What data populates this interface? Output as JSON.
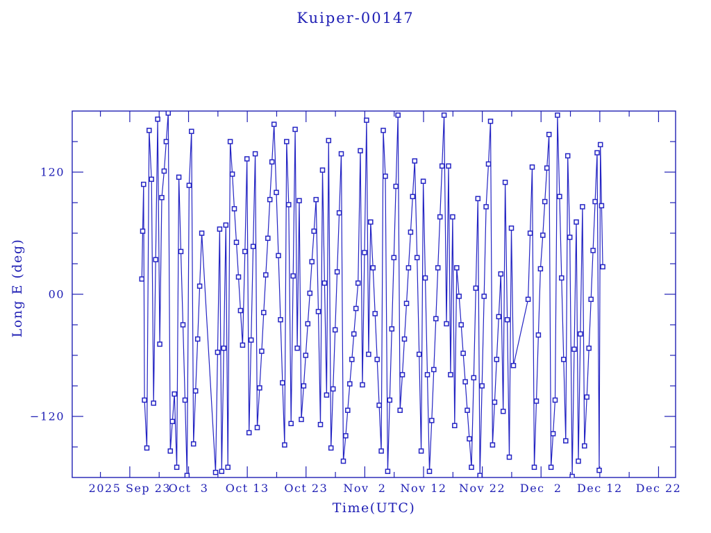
{
  "window": {
    "background": "#ffffff"
  },
  "colors": {
    "text": "#1e1eb4",
    "frame": "#1e1eb4",
    "series_line": "#2323c3",
    "marker_stroke": "#2323c3",
    "marker_fill": "#ffffff"
  },
  "chart_data": {
    "type": "line",
    "title": "Kuiper-00147",
    "xlabel": "Time(UTC)",
    "ylabel": "Long E (deg)",
    "x_unit": "days since 2025 Sep 23 00:00 UTC",
    "xlim": [
      -9.8,
      92.9
    ],
    "ylim": [
      -180,
      180
    ],
    "grid": false,
    "legend": "none",
    "marker": "open-square",
    "marker_size_px": 6,
    "x_major_ticks": [
      {
        "d": 0,
        "label": "2025 Sep 23"
      },
      {
        "d": 10,
        "label": "Oct  3"
      },
      {
        "d": 20,
        "label": "Oct 13"
      },
      {
        "d": 30,
        "label": "Oct 23"
      },
      {
        "d": 40,
        "label": "Nov  2"
      },
      {
        "d": 50,
        "label": "Nov 12"
      },
      {
        "d": 60,
        "label": "Nov 22"
      },
      {
        "d": 70,
        "label": "Dec  2"
      },
      {
        "d": 80,
        "label": "Dec 12"
      },
      {
        "d": 90,
        "label": "Dec 22"
      }
    ],
    "x_minor_ticks_days": [
      -5,
      5,
      15,
      25,
      35,
      45,
      55,
      65,
      75,
      85
    ],
    "y_major_ticks": [
      {
        "v": 120,
        "label": "120"
      },
      {
        "v": 0,
        "label": "00"
      },
      {
        "v": -120,
        "label": "−120"
      }
    ],
    "y_minor_ticks_deg": [
      150,
      90,
      60,
      30,
      -30,
      -60,
      -90,
      -150
    ],
    "points": [
      [
        2.05,
        15
      ],
      [
        2.2,
        62
      ],
      [
        2.35,
        108
      ],
      [
        2.5,
        -104
      ],
      [
        2.9,
        -151
      ],
      [
        3.3,
        161
      ],
      [
        3.7,
        113
      ],
      [
        4.05,
        -107
      ],
      [
        4.4,
        34
      ],
      [
        4.75,
        172
      ],
      [
        5.1,
        -49
      ],
      [
        5.45,
        95
      ],
      [
        5.85,
        121
      ],
      [
        6.2,
        150
      ],
      [
        6.55,
        178
      ],
      [
        6.9,
        -154
      ],
      [
        7.25,
        -125
      ],
      [
        7.6,
        -98
      ],
      [
        8.0,
        -170
      ],
      [
        8.35,
        115
      ],
      [
        8.7,
        42
      ],
      [
        9.05,
        -30
      ],
      [
        9.4,
        -104
      ],
      [
        9.75,
        -178
      ],
      [
        10.1,
        107
      ],
      [
        10.5,
        160
      ],
      [
        10.85,
        -147
      ],
      [
        11.2,
        -95
      ],
      [
        11.55,
        -44
      ],
      [
        11.9,
        8
      ],
      [
        12.25,
        60
      ],
      [
        14.6,
        -175
      ],
      [
        14.95,
        -57
      ],
      [
        15.3,
        64
      ],
      [
        15.65,
        -174
      ],
      [
        16.0,
        -53
      ],
      [
        16.35,
        68
      ],
      [
        16.7,
        -170
      ],
      [
        17.1,
        150
      ],
      [
        17.45,
        118
      ],
      [
        17.8,
        84
      ],
      [
        18.15,
        51
      ],
      [
        18.5,
        17
      ],
      [
        18.85,
        -16
      ],
      [
        19.2,
        -50
      ],
      [
        19.6,
        42
      ],
      [
        19.95,
        133
      ],
      [
        20.3,
        -136
      ],
      [
        20.65,
        -45
      ],
      [
        21.0,
        47
      ],
      [
        21.35,
        138
      ],
      [
        21.7,
        -131
      ],
      [
        22.1,
        -92
      ],
      [
        22.45,
        -56
      ],
      [
        22.8,
        -18
      ],
      [
        23.15,
        19
      ],
      [
        23.5,
        55
      ],
      [
        23.85,
        93
      ],
      [
        24.2,
        130
      ],
      [
        24.55,
        167
      ],
      [
        24.95,
        100
      ],
      [
        25.3,
        38
      ],
      [
        25.65,
        -25
      ],
      [
        26.0,
        -87
      ],
      [
        26.35,
        -148
      ],
      [
        26.7,
        150
      ],
      [
        27.05,
        88
      ],
      [
        27.45,
        -127
      ],
      [
        27.8,
        18
      ],
      [
        28.15,
        162
      ],
      [
        28.5,
        -53
      ],
      [
        28.85,
        92
      ],
      [
        29.2,
        -123
      ],
      [
        29.6,
        -90
      ],
      [
        29.95,
        -60
      ],
      [
        30.3,
        -29
      ],
      [
        30.65,
        1
      ],
      [
        31.0,
        32
      ],
      [
        31.35,
        62
      ],
      [
        31.7,
        93
      ],
      [
        32.1,
        -17
      ],
      [
        32.45,
        -128
      ],
      [
        32.8,
        122
      ],
      [
        33.15,
        11
      ],
      [
        33.5,
        -99
      ],
      [
        33.85,
        151
      ],
      [
        34.25,
        -151
      ],
      [
        34.6,
        -93
      ],
      [
        34.95,
        -35
      ],
      [
        35.3,
        22
      ],
      [
        35.65,
        80
      ],
      [
        36.0,
        138
      ],
      [
        36.35,
        -164
      ],
      [
        36.75,
        -139
      ],
      [
        37.1,
        -114
      ],
      [
        37.45,
        -88
      ],
      [
        37.8,
        -64
      ],
      [
        38.15,
        -39
      ],
      [
        38.5,
        -14
      ],
      [
        38.85,
        11
      ],
      [
        39.25,
        141
      ],
      [
        39.6,
        -89
      ],
      [
        39.95,
        41
      ],
      [
        40.3,
        171
      ],
      [
        40.65,
        -59
      ],
      [
        41.0,
        71
      ],
      [
        41.4,
        26
      ],
      [
        41.75,
        -19
      ],
      [
        42.1,
        -64
      ],
      [
        42.45,
        -109
      ],
      [
        42.8,
        -154
      ],
      [
        43.15,
        161
      ],
      [
        43.5,
        116
      ],
      [
        43.9,
        -174
      ],
      [
        44.25,
        -104
      ],
      [
        44.6,
        -34
      ],
      [
        44.95,
        36
      ],
      [
        45.3,
        106
      ],
      [
        45.65,
        176
      ],
      [
        46.0,
        -114
      ],
      [
        46.4,
        -79
      ],
      [
        46.75,
        -44
      ],
      [
        47.1,
        -9
      ],
      [
        47.45,
        26
      ],
      [
        47.8,
        61
      ],
      [
        48.15,
        96
      ],
      [
        48.5,
        131
      ],
      [
        48.9,
        36
      ],
      [
        49.25,
        -59
      ],
      [
        49.6,
        -154
      ],
      [
        49.95,
        111
      ],
      [
        50.3,
        16
      ],
      [
        50.65,
        -79
      ],
      [
        51.0,
        -174
      ],
      [
        51.4,
        -124
      ],
      [
        51.75,
        -74
      ],
      [
        52.1,
        -24
      ],
      [
        52.45,
        26
      ],
      [
        52.8,
        76
      ],
      [
        53.15,
        126
      ],
      [
        53.5,
        176
      ],
      [
        53.9,
        -29
      ],
      [
        54.25,
        126
      ],
      [
        54.6,
        -79
      ],
      [
        54.95,
        76
      ],
      [
        55.3,
        -129
      ],
      [
        55.65,
        26
      ],
      [
        56.05,
        -2
      ],
      [
        56.4,
        -30
      ],
      [
        56.75,
        -58
      ],
      [
        57.1,
        -86
      ],
      [
        57.45,
        -114
      ],
      [
        57.8,
        -142
      ],
      [
        58.15,
        -170
      ],
      [
        58.55,
        -82
      ],
      [
        58.9,
        6
      ],
      [
        59.25,
        94
      ],
      [
        59.6,
        -178
      ],
      [
        59.95,
        -90
      ],
      [
        60.3,
        -2
      ],
      [
        60.65,
        86
      ],
      [
        61.05,
        128
      ],
      [
        61.4,
        170
      ],
      [
        61.75,
        -148
      ],
      [
        62.1,
        -106
      ],
      [
        62.45,
        -64
      ],
      [
        62.8,
        -22
      ],
      [
        63.15,
        20
      ],
      [
        63.55,
        -115
      ],
      [
        63.9,
        110
      ],
      [
        64.25,
        -25
      ],
      [
        64.6,
        -160
      ],
      [
        64.95,
        65
      ],
      [
        65.3,
        -70
      ],
      [
        67.8,
        -5
      ],
      [
        68.15,
        60
      ],
      [
        68.5,
        125
      ],
      [
        68.85,
        -170
      ],
      [
        69.2,
        -105
      ],
      [
        69.55,
        -40
      ],
      [
        69.9,
        25
      ],
      [
        70.3,
        58
      ],
      [
        70.65,
        91
      ],
      [
        71.0,
        124
      ],
      [
        71.35,
        157
      ],
      [
        71.7,
        -170
      ],
      [
        72.05,
        -137
      ],
      [
        72.4,
        -104
      ],
      [
        72.8,
        176
      ],
      [
        73.15,
        96
      ],
      [
        73.5,
        16
      ],
      [
        73.85,
        -64
      ],
      [
        74.2,
        -144
      ],
      [
        74.55,
        136
      ],
      [
        74.9,
        56
      ],
      [
        75.3,
        -179
      ],
      [
        75.65,
        -54
      ],
      [
        76.0,
        71
      ],
      [
        76.35,
        -164
      ],
      [
        76.7,
        -39
      ],
      [
        77.05,
        86
      ],
      [
        77.4,
        -149
      ],
      [
        77.8,
        -101
      ],
      [
        78.15,
        -53
      ],
      [
        78.5,
        -5
      ],
      [
        78.85,
        43
      ],
      [
        79.2,
        91
      ],
      [
        79.55,
        139
      ],
      [
        79.9,
        -173
      ],
      [
        80.1,
        147
      ],
      [
        80.3,
        87
      ],
      [
        80.5,
        27
      ]
    ]
  }
}
